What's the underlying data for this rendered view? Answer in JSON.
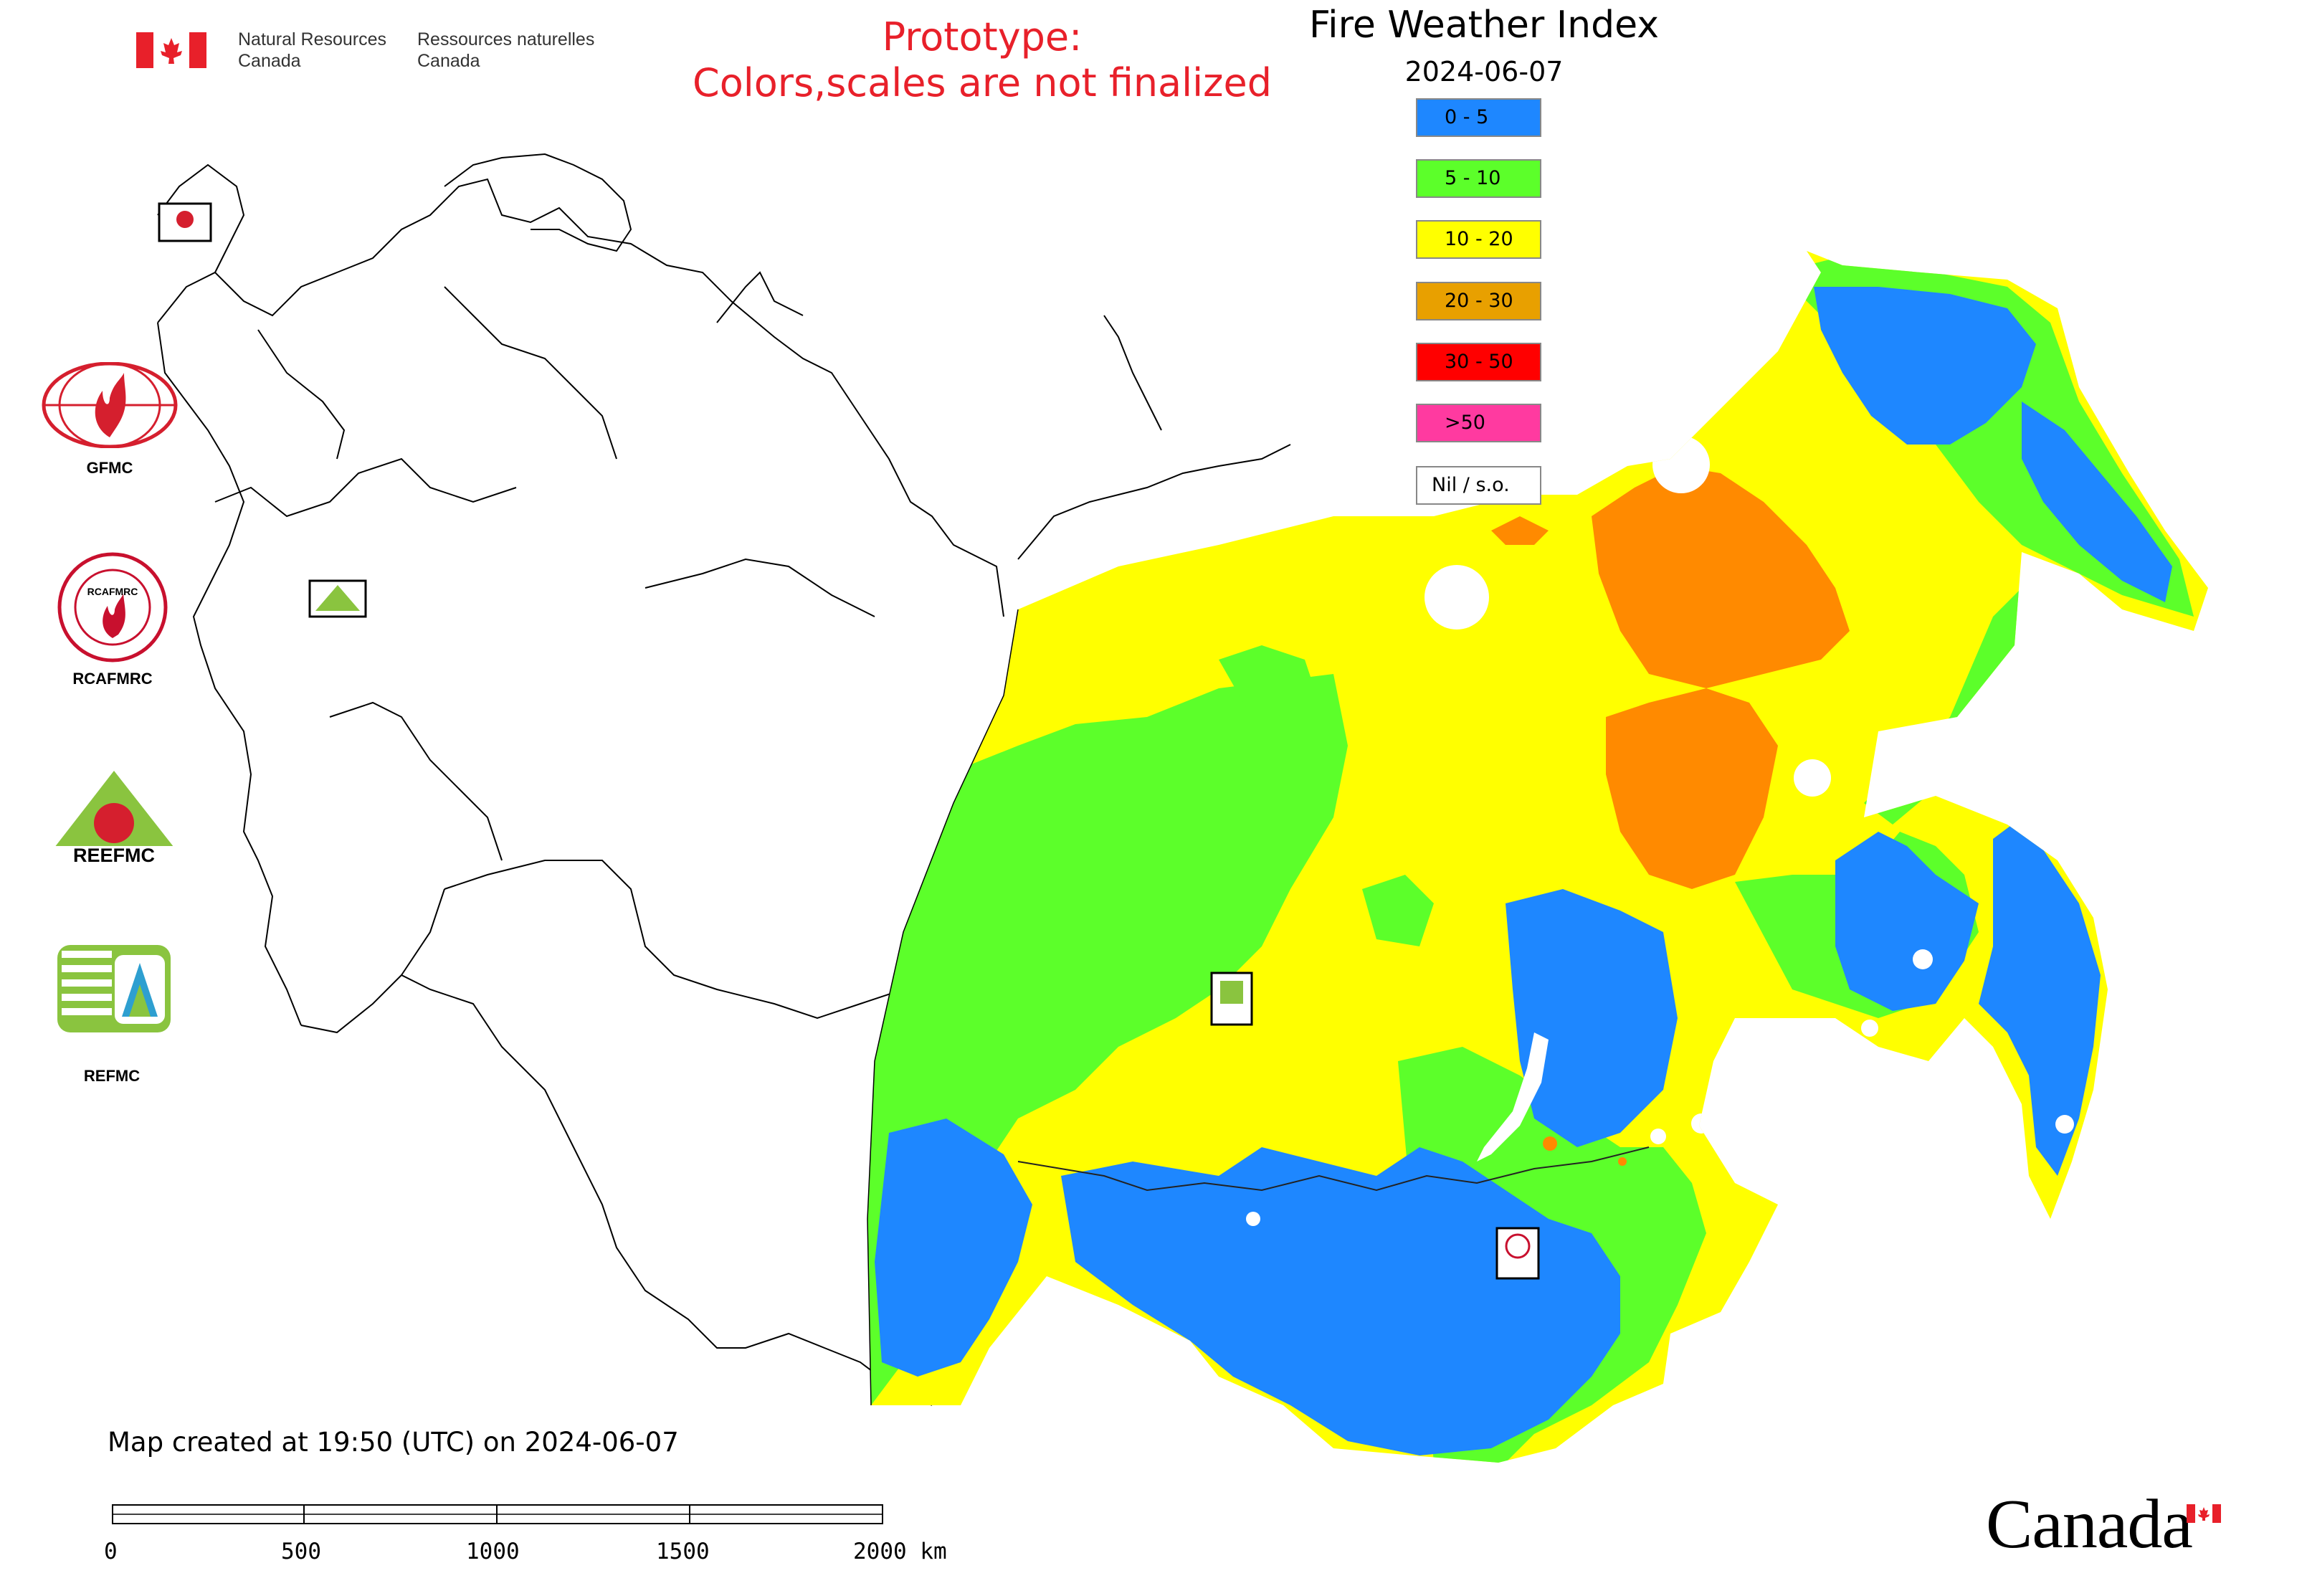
{
  "header": {
    "org_en_line1": "Natural Resources",
    "org_en_line2": "Canada",
    "org_fr_line1": "Ressources naturelles",
    "org_fr_line2": "Canada"
  },
  "prototype_notice": {
    "line1": "Prototype:",
    "line2": "Colors,scales are not finalized"
  },
  "map": {
    "title": "Fire Weather Index",
    "date": "2024-06-07",
    "created_note": "Map created at 19:50 (UTC) on 2024-06-07"
  },
  "legend": [
    {
      "label": "0 - 5",
      "color": "#1e87ff"
    },
    {
      "label": "5 - 10",
      "color": "#5cff2a"
    },
    {
      "label": "10 - 20",
      "color": "#ffff00"
    },
    {
      "label": "20 - 30",
      "color": "#e8a000"
    },
    {
      "label": "30 - 50",
      "color": "#ff0000"
    },
    {
      "label": ">50",
      "color": "#ff3aa0"
    },
    {
      "label": "Nil / s.o.",
      "color": "#ffffff"
    }
  ],
  "logos": [
    {
      "label": "GFMC",
      "icon": "gfmc-logo-icon"
    },
    {
      "label": "RCAFMRC",
      "icon": "rcafmrc-logo-icon"
    },
    {
      "label": "",
      "icon": "reefmc-logo-icon",
      "wordmark": "REEFMC"
    },
    {
      "label": "REFMC",
      "icon": "refmc-logo-icon"
    }
  ],
  "scale_bar": {
    "ticks": [
      "0",
      "500",
      "1000",
      "1500",
      "2000 km"
    ]
  },
  "wordmark": "Canada"
}
